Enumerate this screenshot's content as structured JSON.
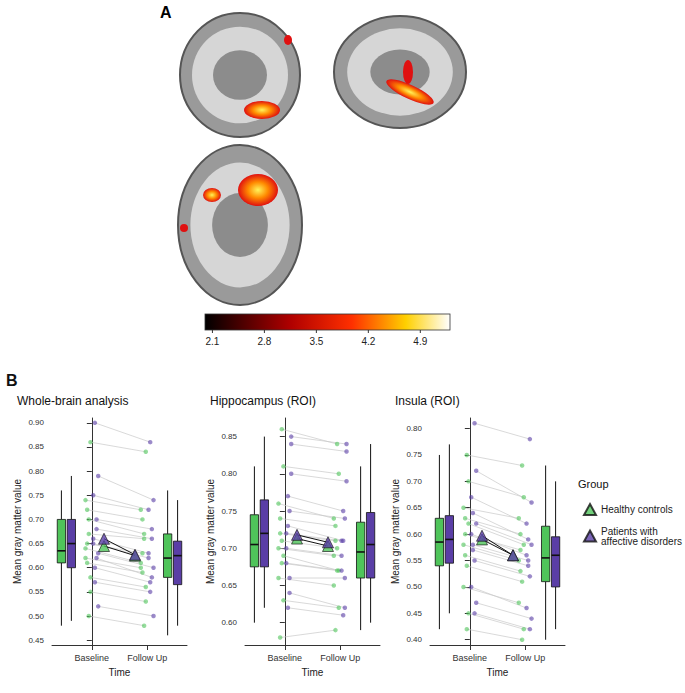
{
  "panel_a": {
    "label": "A",
    "colorbar": {
      "range": [
        2.0,
        5.3
      ],
      "ticks": [
        2.1,
        2.8,
        3.5,
        4.2,
        4.9
      ]
    }
  },
  "panel_b": {
    "label": "B"
  },
  "legend_title": "Group",
  "chart_data": [
    {
      "type": "box",
      "title": "Whole-brain analysis",
      "x_label": "Time",
      "y_label": "Mean gray matter value",
      "categories": [
        "Baseline",
        "Follow Up"
      ],
      "grid": false,
      "ylim": [
        0.44,
        0.91
      ],
      "yticks": [
        0.45,
        {
          "value": 0.5,
          "label": "0.50"
        },
        0.55,
        {
          "value": 0.6,
          "label": "0.60"
        },
        0.65,
        {
          "value": 0.7,
          "label": "0.70"
        },
        0.75,
        {
          "value": 0.8,
          "label": "0.80"
        },
        0.85,
        {
          "value": 0.9,
          "label": "0.90"
        }
      ],
      "series": [
        {
          "name": "Healthy controls",
          "color": "#4fc45a",
          "box": [
            [
              0.48,
              0.61,
              0.635,
              0.7,
              0.76
            ],
            [
              0.46,
              0.58,
              0.62,
              0.67,
              0.76
            ]
          ],
          "means": [
            0.645,
            0.625
          ],
          "subjects": [
            [
              0.62,
              0.6
            ],
            [
              0.65,
              0.63
            ],
            [
              0.7,
              0.67
            ],
            [
              0.58,
              0.56
            ],
            [
              0.74,
              0.72
            ],
            [
              0.61,
              0.59
            ],
            [
              0.67,
              0.66
            ],
            [
              0.55,
              0.53
            ],
            [
              0.64,
              0.61
            ],
            [
              0.72,
              0.7
            ],
            [
              0.5,
              0.48
            ],
            [
              0.86,
              0.84
            ]
          ]
        },
        {
          "name": "Patients with affective disorders",
          "color": "#5a3ea6",
          "box": [
            [
              0.49,
              0.6,
              0.65,
              0.7,
              0.79
            ],
            [
              0.48,
              0.565,
              0.625,
              0.655,
              0.74
            ]
          ],
          "means": [
            0.66,
            0.627
          ],
          "subjects": [
            [
              0.66,
              0.63
            ],
            [
              0.6,
              0.57
            ],
            [
              0.7,
              0.68
            ],
            [
              0.63,
              0.6
            ],
            [
              0.75,
              0.72
            ],
            [
              0.57,
              0.55
            ],
            [
              0.68,
              0.66
            ],
            [
              0.52,
              0.5
            ],
            [
              0.65,
              0.62
            ],
            [
              0.9,
              0.86
            ],
            [
              0.62,
              0.58
            ],
            [
              0.79,
              0.74
            ]
          ]
        }
      ]
    },
    {
      "type": "box",
      "title": "Hippocampus (ROI)",
      "x_label": "Time",
      "y_label": "Mean gray matter value",
      "categories": [
        "Baseline",
        "Follow Up"
      ],
      "grid": false,
      "ylim": [
        0.57,
        0.875
      ],
      "yticks": [
        {
          "value": 0.6,
          "label": "0.60"
        },
        0.65,
        {
          "value": 0.7,
          "label": "0.70"
        },
        0.75,
        {
          "value": 0.8,
          "label": "0.80"
        },
        0.85
      ],
      "series": [
        {
          "name": "Healthy controls",
          "color": "#4fc45a",
          "box": [
            [
              0.6,
              0.675,
              0.705,
              0.745,
              0.81
            ],
            [
              0.59,
              0.66,
              0.695,
              0.735,
              0.81
            ]
          ],
          "means": [
            0.713,
            0.703
          ],
          "subjects": [
            [
              0.7,
              0.69
            ],
            [
              0.74,
              0.73
            ],
            [
              0.68,
              0.67
            ],
            [
              0.81,
              0.8
            ],
            [
              0.66,
              0.65
            ],
            [
              0.72,
              0.71
            ],
            [
              0.86,
              0.84
            ],
            [
              0.63,
              0.62
            ],
            [
              0.76,
              0.74
            ],
            [
              0.58,
              0.59
            ],
            [
              0.71,
              0.7
            ],
            [
              0.69,
              0.67
            ]
          ]
        },
        {
          "name": "Patients with affective disorders",
          "color": "#5a3ea6",
          "box": [
            [
              0.62,
              0.675,
              0.72,
              0.765,
              0.85
            ],
            [
              0.6,
              0.66,
              0.705,
              0.748,
              0.84
            ]
          ],
          "means": [
            0.718,
            0.708
          ],
          "subjects": [
            [
              0.72,
              0.71
            ],
            [
              0.77,
              0.75
            ],
            [
              0.66,
              0.66
            ],
            [
              0.84,
              0.83
            ],
            [
              0.7,
              0.69
            ],
            [
              0.62,
              0.61
            ],
            [
              0.75,
              0.74
            ],
            [
              0.8,
              0.79
            ],
            [
              0.68,
              0.67
            ],
            [
              0.73,
              0.71
            ],
            [
              0.64,
              0.62
            ],
            [
              0.85,
              0.84
            ]
          ]
        }
      ]
    },
    {
      "type": "box",
      "title": "Insula (ROI)",
      "x_label": "Time",
      "y_label": "Mean gray matter value",
      "categories": [
        "Baseline",
        "Follow Up"
      ],
      "grid": false,
      "ylim": [
        0.39,
        0.82
      ],
      "yticks": [
        {
          "value": 0.4,
          "label": "0.40"
        },
        0.45,
        {
          "value": 0.5,
          "label": "0.50"
        },
        0.55,
        {
          "value": 0.6,
          "label": "0.60"
        },
        0.65,
        {
          "value": 0.7,
          "label": "0.70"
        },
        0.75,
        {
          "value": 0.8,
          "label": "0.80"
        }
      ],
      "series": [
        {
          "name": "Healthy controls",
          "color": "#4fc45a",
          "box": [
            [
              0.42,
              0.54,
              0.585,
              0.63,
              0.75
            ],
            [
              0.4,
              0.51,
              0.555,
              0.615,
              0.73
            ]
          ],
          "means": [
            0.59,
            0.56
          ],
          "subjects": [
            [
              0.58,
              0.55
            ],
            [
              0.63,
              0.6
            ],
            [
              0.54,
              0.51
            ],
            [
              0.7,
              0.67
            ],
            [
              0.5,
              0.47
            ],
            [
              0.6,
              0.57
            ],
            [
              0.75,
              0.73
            ],
            [
              0.45,
              0.42
            ],
            [
              0.65,
              0.63
            ],
            [
              0.56,
              0.53
            ],
            [
              0.42,
              0.4
            ],
            [
              0.62,
              0.58
            ]
          ]
        },
        {
          "name": "Patients with affective disorders",
          "color": "#5a3ea6",
          "box": [
            [
              0.45,
              0.545,
              0.59,
              0.635,
              0.77
            ],
            [
              0.42,
              0.5,
              0.56,
              0.595,
              0.7
            ]
          ],
          "means": [
            0.597,
            0.56
          ],
          "subjects": [
            [
              0.6,
              0.56
            ],
            [
              0.64,
              0.59
            ],
            [
              0.55,
              0.52
            ],
            [
              0.72,
              0.66
            ],
            [
              0.5,
              0.46
            ],
            [
              0.58,
              0.55
            ],
            [
              0.81,
              0.78
            ],
            [
              0.47,
              0.44
            ],
            [
              0.67,
              0.62
            ],
            [
              0.57,
              0.54
            ],
            [
              0.45,
              0.42
            ],
            [
              0.62,
              0.58
            ]
          ]
        }
      ]
    }
  ]
}
